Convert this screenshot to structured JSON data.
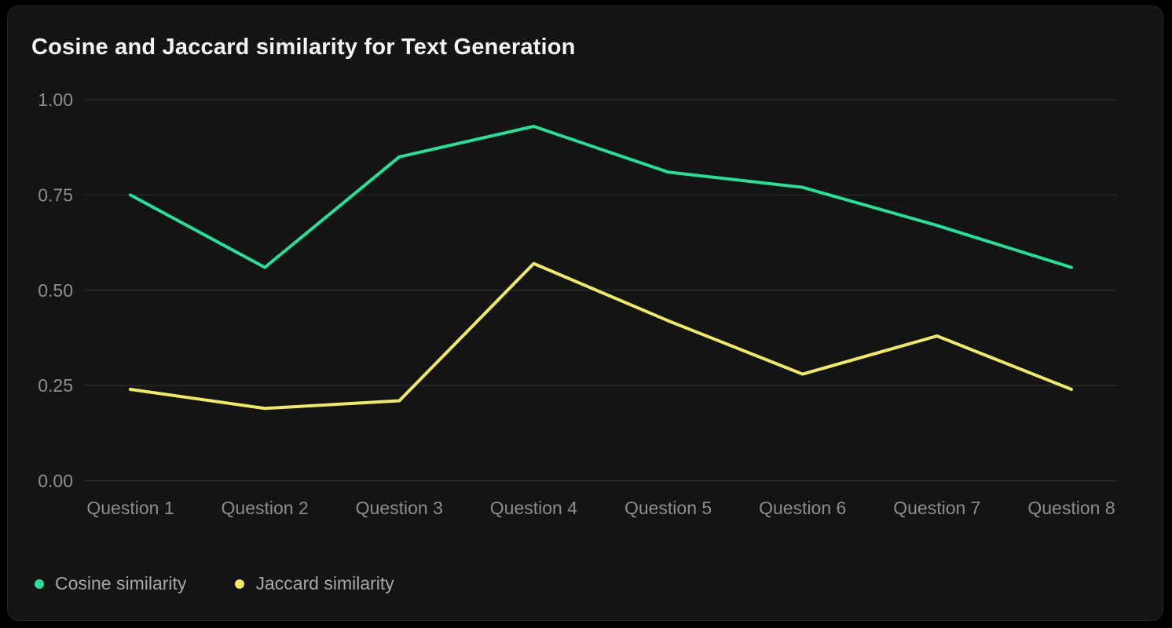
{
  "chart_data": {
    "type": "line",
    "title": "Cosine and Jaccard similarity for Text Generation",
    "categories": [
      "Question 1",
      "Question 2",
      "Question 3",
      "Question 4",
      "Question 5",
      "Question 6",
      "Question 7",
      "Question 8"
    ],
    "series": [
      {
        "name": "Cosine similarity",
        "color": "#23e296",
        "values": [
          0.75,
          0.56,
          0.85,
          0.93,
          0.81,
          0.77,
          0.67,
          0.56
        ]
      },
      {
        "name": "Jaccard similarity",
        "color": "#eeea63",
        "values": [
          0.24,
          0.19,
          0.21,
          0.57,
          0.42,
          0.28,
          0.38,
          0.24
        ]
      }
    ],
    "xlabel": "",
    "ylabel": "",
    "ylim": [
      0,
      1
    ],
    "y_ticks": [
      "0.00",
      "0.25",
      "0.50",
      "0.75",
      "1.00"
    ],
    "grid": true,
    "legend_position": "bottom-left"
  },
  "colors": {
    "background": "#000000",
    "card": "#141414",
    "grid_line": "#353535",
    "axis_text": "#8d8d8d",
    "title_text": "#f4f4f4",
    "legend_text": "#a6a6a6"
  }
}
